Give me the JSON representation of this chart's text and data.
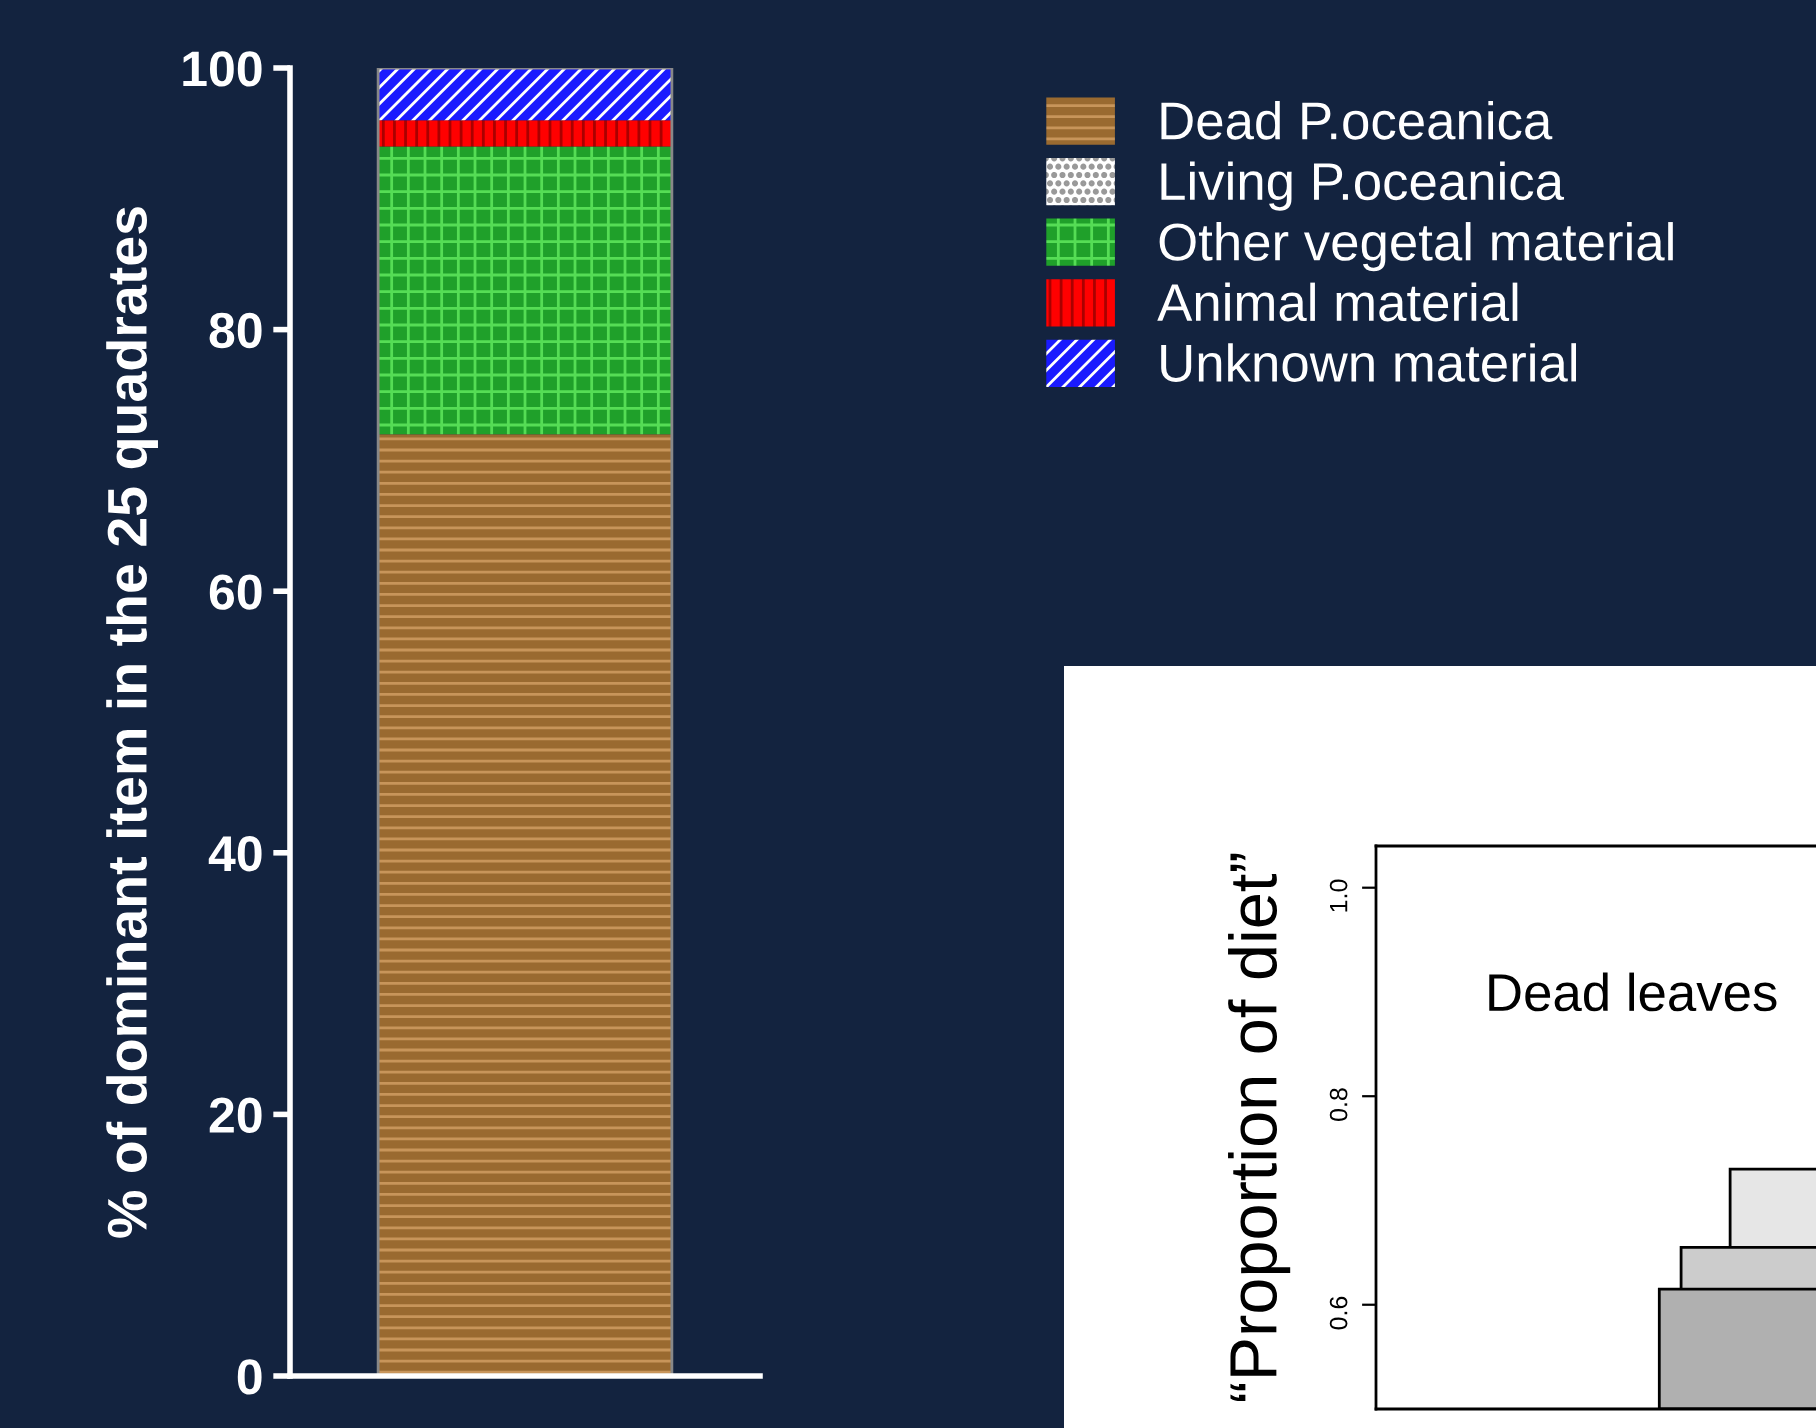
{
  "chart_data": [
    {
      "type": "bar",
      "stacked": true,
      "ylabel": "% of dominant item in the 25 quadrates",
      "categories": [
        null
      ],
      "series": [
        {
          "name": "Dead P.oceanica",
          "color": "#9a6a30",
          "values": [
            72
          ]
        },
        {
          "name": "Living P.oceanica",
          "color": "#ffffff",
          "values": [
            0
          ]
        },
        {
          "name": "Other vegetal material",
          "color": "#1fa02a",
          "values": [
            22
          ]
        },
        {
          "name": "Animal material",
          "color": "#ff0000",
          "values": [
            2
          ]
        },
        {
          "name": "Unknown material",
          "color": "#1a1aff",
          "values": [
            4
          ]
        }
      ],
      "ylim": [
        0,
        100
      ],
      "yticks": [
        0,
        20,
        40,
        60,
        80,
        100
      ],
      "legend": "right",
      "grid": false
    },
    {
      "type": "other",
      "ylabel": "“Proportion of diet”",
      "annotations": [
        "Dead leaves",
        "0.6",
        "0.8",
        "1.0"
      ]
    }
  ]
}
